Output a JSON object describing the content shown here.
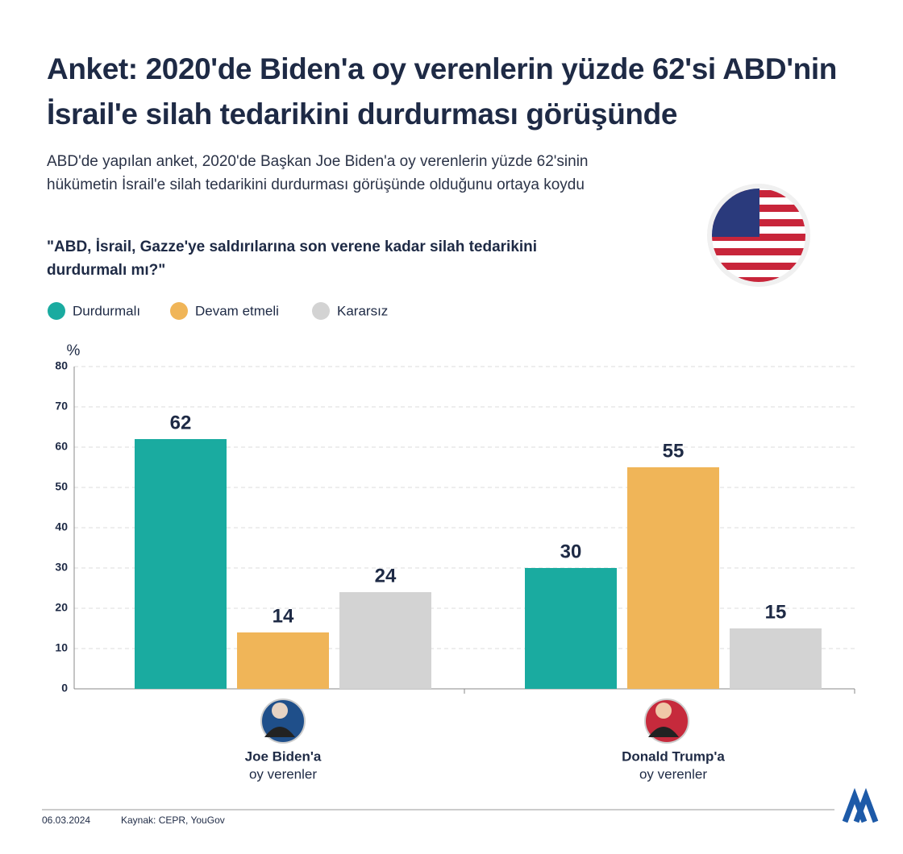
{
  "chart_data": {
    "type": "bar",
    "title": "Anket: 2020'de Biden'a oy verenlerin yüzde 62'si ABD'nin İsrail'e silah tedarikini durdurması görüşünde",
    "subtitle": "ABD'de yapılan anket, 2020'de Başkan Joe Biden'a oy verenlerin yüzde 62'sinin hükümetin İsrail'e silah tedarikini durdurması görüşünde olduğunu ortaya koydu",
    "question": "\"ABD, İsrail, Gazze'ye saldırılarına son verene kadar silah tedarikini durdurmalı mı?\"",
    "y_label": "%",
    "categories": [
      "Joe Biden'a",
      "Donald Trump'a"
    ],
    "category_sublabels": [
      "oy verenler",
      "oy verenler"
    ],
    "series": [
      {
        "name": "Durdurmalı",
        "color": "#1aaba0",
        "values": [
          62,
          30
        ]
      },
      {
        "name": "Devam etmeli",
        "color": "#f0b558",
        "values": [
          14,
          55
        ]
      },
      {
        "name": "Kararsız",
        "color": "#d3d3d3",
        "values": [
          24,
          15
        ]
      }
    ],
    "ylim": [
      0,
      80
    ],
    "yticks": [
      0,
      10,
      20,
      30,
      40,
      50,
      60,
      70,
      80
    ],
    "grid": true,
    "date": "06.03.2024",
    "source": "Kaynak: CEPR, YouGov"
  }
}
